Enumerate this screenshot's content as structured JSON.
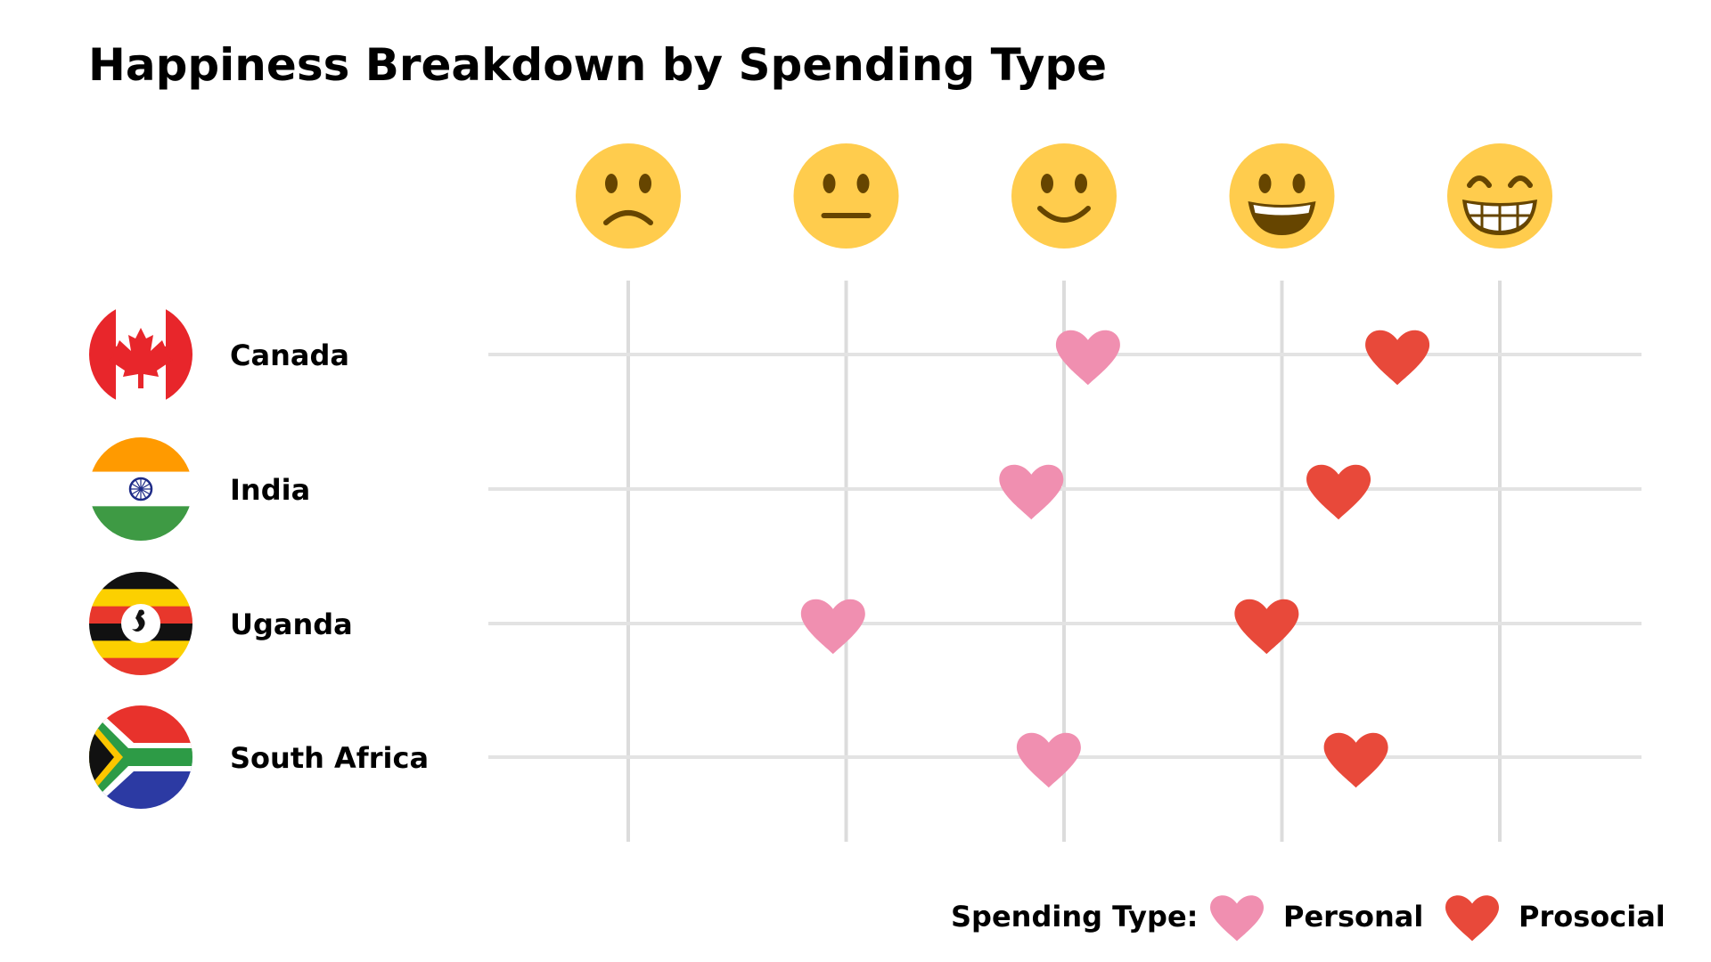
{
  "chart_data": {
    "type": "scatter",
    "title": "Happiness Breakdown by Spending Type",
    "x_scale": {
      "min": 1,
      "max": 5,
      "levels": [
        {
          "value": 1,
          "icon": "frowning-face-icon"
        },
        {
          "value": 2,
          "icon": "neutral-face-icon"
        },
        {
          "value": 3,
          "icon": "slightly-smiling-face-icon"
        },
        {
          "value": 4,
          "icon": "grinning-face-icon"
        },
        {
          "value": 5,
          "icon": "beaming-face-icon"
        }
      ]
    },
    "categories": [
      "Canada",
      "India",
      "Uganda",
      "South Africa"
    ],
    "category_icons": [
      "canada-flag-icon",
      "india-flag-icon",
      "uganda-flag-icon",
      "south-africa-flag-icon"
    ],
    "series": [
      {
        "name": "Personal",
        "color": "#f08fb0",
        "values": [
          3.11,
          2.85,
          1.94,
          2.93
        ]
      },
      {
        "name": "Prosocial",
        "color": "#e8493a",
        "values": [
          4.53,
          4.26,
          3.93,
          4.34
        ]
      }
    ],
    "legend": {
      "title": "Spending Type:",
      "placement": "bottom-right"
    },
    "grid": true
  }
}
